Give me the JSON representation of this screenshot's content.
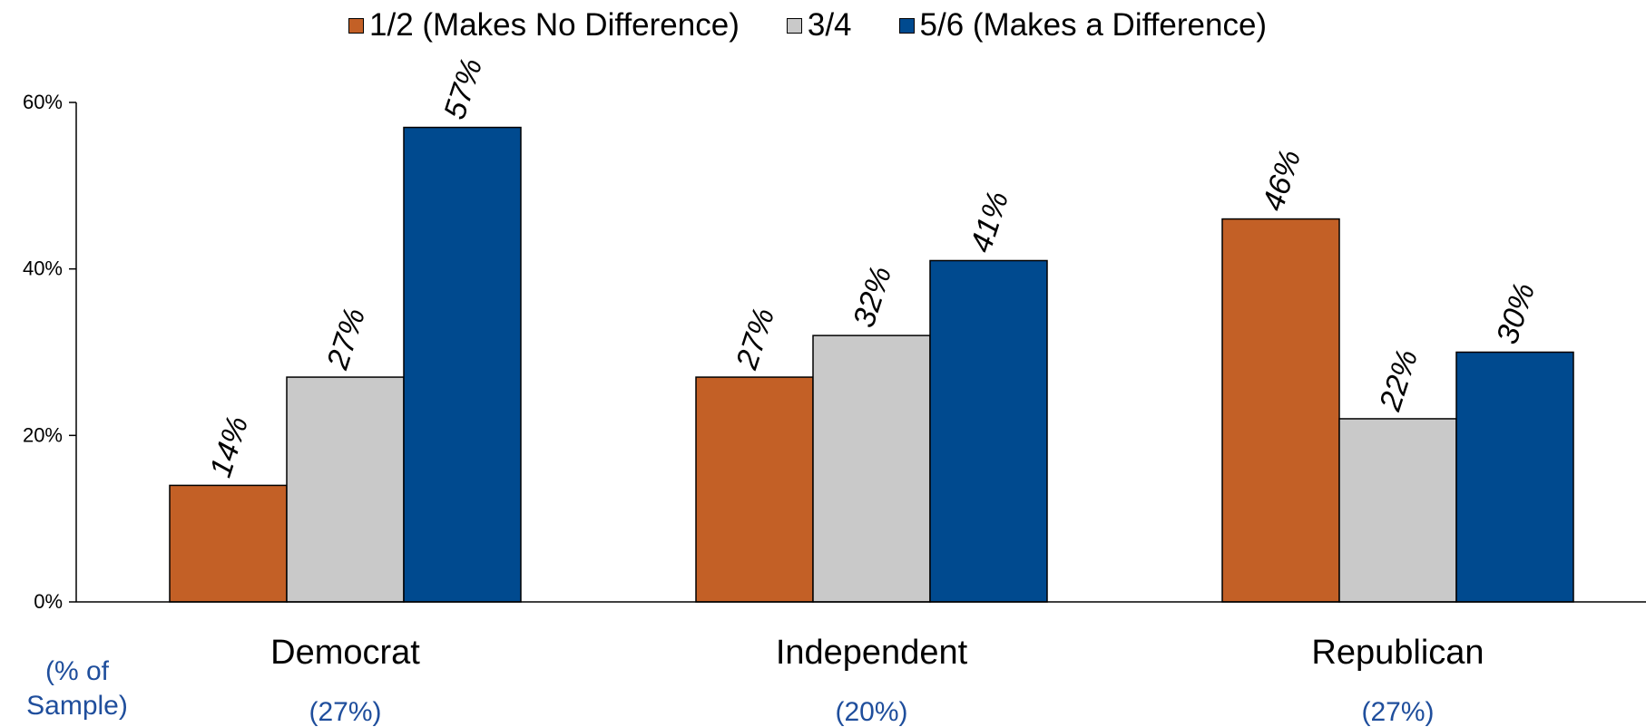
{
  "chart_data": {
    "type": "bar",
    "categories": [
      "Democrat",
      "Independent",
      "Republican"
    ],
    "category_subtitles": [
      "(27%)",
      "(20%)",
      "(27%)"
    ],
    "series": [
      {
        "name": "1/2 (Makes No Difference)",
        "values": [
          14,
          27,
          46
        ],
        "labels": [
          "14%",
          "27%",
          "46%"
        ],
        "color": "#c36026"
      },
      {
        "name": "3/4",
        "values": [
          27,
          32,
          22
        ],
        "labels": [
          "27%",
          "32%",
          "22%"
        ],
        "color": "#c9c9c9"
      },
      {
        "name": "5/6 (Makes a Difference)",
        "values": [
          57,
          41,
          30
        ],
        "labels": [
          "57%",
          "41%",
          "30%"
        ],
        "color": "#004a8f"
      }
    ],
    "ylim": [
      0,
      60
    ],
    "yticks": [
      0,
      20,
      40,
      60
    ],
    "ytick_labels": [
      "0%",
      "20%",
      "40%",
      "60%"
    ],
    "legend_position": "top",
    "grid": false,
    "title": "",
    "xlabel": "",
    "ylabel": ""
  },
  "sample_note": {
    "line1": "(% of",
    "line2": "Sample)",
    "color": "#1f4e9c"
  }
}
